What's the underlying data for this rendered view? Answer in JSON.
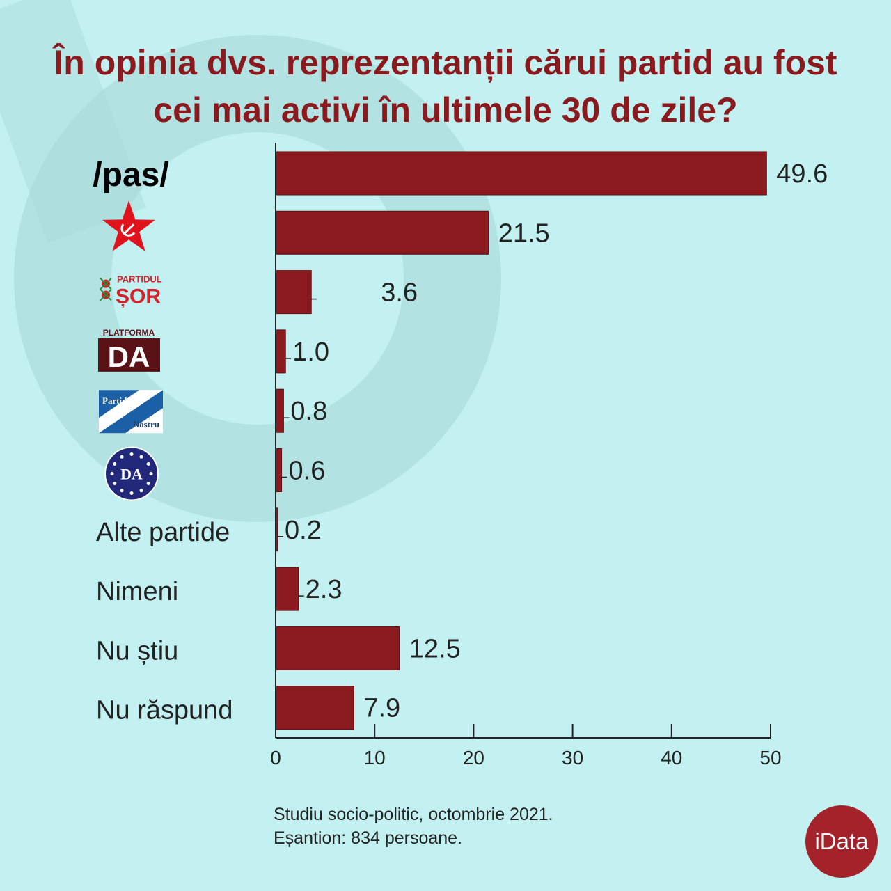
{
  "title_line1": "În opinia dvs. reprezentanții cărui partid au fost",
  "title_line2": "cei mai activi în ultimele 30 de zile?",
  "footnote_line1": "Studiu socio-politic, octombrie 2021.",
  "footnote_line2": "Eșantion: 834 persoane.",
  "brand": "iData",
  "logos": {
    "pas": "/pas/",
    "sor_top": "PARTIDUL",
    "sor_bottom": "ȘOR",
    "da_top": "PLATFORMA",
    "da_main": "DA",
    "pn_top": "Partidul",
    "pn_bottom": "Nostru",
    "eu_da": "DA"
  },
  "colors": {
    "background": "#c3f1f1",
    "bar": "#8b1a1f",
    "title": "#8b1a1f",
    "brand": "#a4232a"
  },
  "chart_data": {
    "type": "bar",
    "orientation": "horizontal",
    "categories": [
      "/pas/",
      "PCRM",
      "Partidul ȘOR",
      "Platforma DA",
      "Partidul Nostru",
      "DA",
      "Alte partide",
      "Nimeni",
      "Nu știu",
      "Nu răspund"
    ],
    "values": [
      49.6,
      21.5,
      3.6,
      1.0,
      0.8,
      0.6,
      0.2,
      2.3,
      12.5,
      7.9
    ],
    "value_labels": [
      "49.6",
      "21.5",
      "3.6",
      "1.0",
      "0.8",
      "0.6",
      "0.2",
      "2.3",
      "12.5",
      "7.9"
    ],
    "text_labels": [
      "",
      "",
      "",
      "",
      "",
      "",
      "Alte partide",
      "Nimeni",
      "Nu știu",
      "Nu răspund"
    ],
    "xlim": [
      0,
      50
    ],
    "xticks": [
      0,
      10,
      20,
      30,
      40,
      50
    ],
    "grid": false,
    "legend": "none"
  }
}
